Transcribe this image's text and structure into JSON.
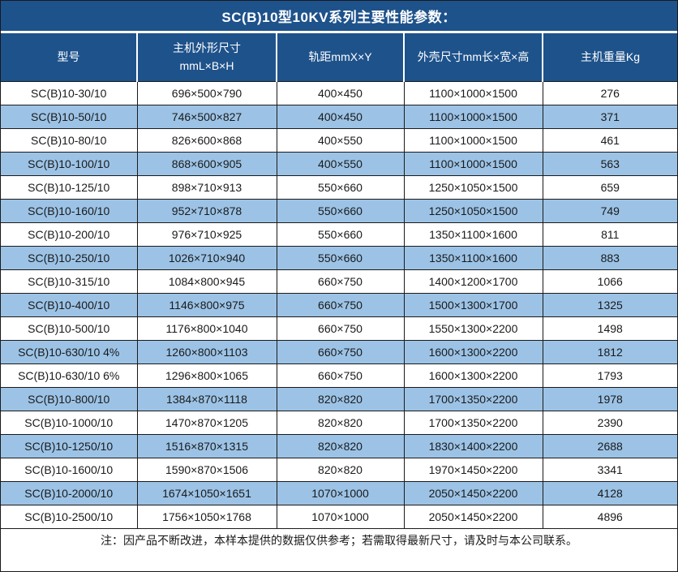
{
  "title": "SC(B)10型10KV系列主要性能参数：",
  "note": "注：因产品不断改进，本样本提供的数据仅供参考；若需取得最新尺寸，请及时与本公司联系。",
  "colors": {
    "header_bg": "#1E528B",
    "row_alt_bg": "#9CC3E6",
    "row_bg": "#FFFFFF",
    "grid": "#1A1A1A",
    "header_text": "#FFFFFF",
    "text": "#1A1A1A"
  },
  "table": {
    "columns": [
      "型号",
      "主机外形尺寸\nmmL×B×H",
      "轨距mmX×Y",
      "外壳尺寸mm长×宽×高",
      "主机重量Kg"
    ],
    "rows": [
      [
        "SC(B)10-30/10",
        "696×500×790",
        "400×450",
        "1100×1000×1500",
        "276"
      ],
      [
        "SC(B)10-50/10",
        "746×500×827",
        "400×450",
        "1100×1000×1500",
        "371"
      ],
      [
        "SC(B)10-80/10",
        "826×600×868",
        "400×550",
        "1100×1000×1500",
        "461"
      ],
      [
        "SC(B)10-100/10",
        "868×600×905",
        "400×550",
        "1100×1000×1500",
        "563"
      ],
      [
        "SC(B)10-125/10",
        "898×710×913",
        "550×660",
        "1250×1050×1500",
        "659"
      ],
      [
        "SC(B)10-160/10",
        "952×710×878",
        "550×660",
        "1250×1050×1500",
        "749"
      ],
      [
        "SC(B)10-200/10",
        "976×710×925",
        "550×660",
        "1350×1100×1600",
        "811"
      ],
      [
        "SC(B)10-250/10",
        "1026×710×940",
        "550×660",
        "1350×1100×1600",
        "883"
      ],
      [
        "SC(B)10-315/10",
        "1084×800×945",
        "660×750",
        "1400×1200×1700",
        "1066"
      ],
      [
        "SC(B)10-400/10",
        "1146×800×975",
        "660×750",
        "1500×1300×1700",
        "1325"
      ],
      [
        "SC(B)10-500/10",
        "1176×800×1040",
        "660×750",
        "1550×1300×2200",
        "1498"
      ],
      [
        "SC(B)10-630/10 4%",
        "1260×800×1103",
        "660×750",
        "1600×1300×2200",
        "1812"
      ],
      [
        "SC(B)10-630/10 6%",
        "1296×800×1065",
        "660×750",
        "1600×1300×2200",
        "1793"
      ],
      [
        "SC(B)10-800/10",
        "1384×870×1118",
        "820×820",
        "1700×1350×2200",
        "1978"
      ],
      [
        "SC(B)10-1000/10",
        "1470×870×1205",
        "820×820",
        "1700×1350×2200",
        "2390"
      ],
      [
        "SC(B)10-1250/10",
        "1516×870×1315",
        "820×820",
        "1830×1400×2200",
        "2688"
      ],
      [
        "SC(B)10-1600/10",
        "1590×870×1506",
        "820×820",
        "1970×1450×2200",
        "3341"
      ],
      [
        "SC(B)10-2000/10",
        "1674×1050×1651",
        "1070×1000",
        "2050×1450×2200",
        "4128"
      ],
      [
        "SC(B)10-2500/10",
        "1756×1050×1768",
        "1070×1000",
        "2050×1450×2200",
        "4896"
      ]
    ]
  }
}
